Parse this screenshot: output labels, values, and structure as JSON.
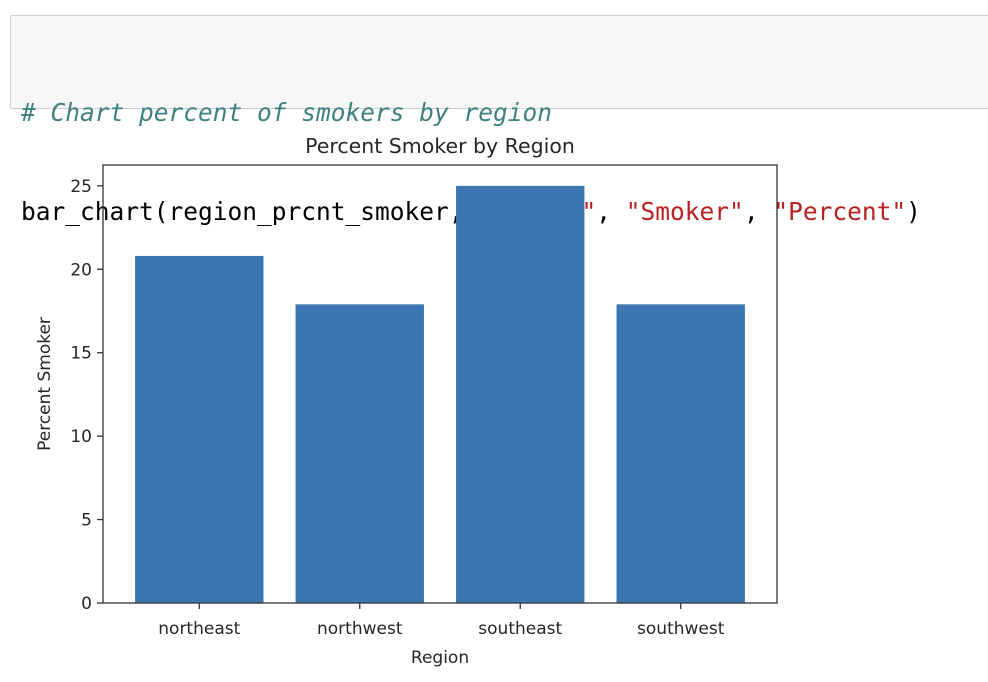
{
  "code_cell": {
    "comment": "# Chart percent of smokers by region",
    "code_tokens": [
      {
        "text": "bar_chart(region_prcnt_smoker, ",
        "kind": "plain"
      },
      {
        "text": "\"Region\"",
        "kind": "string"
      },
      {
        "text": ", ",
        "kind": "plain"
      },
      {
        "text": "\"Smoker\"",
        "kind": "string"
      },
      {
        "text": ", ",
        "kind": "plain"
      },
      {
        "text": "\"Percent\"",
        "kind": "string"
      },
      {
        "text": ")",
        "kind": "plain"
      }
    ]
  },
  "chart_data": {
    "type": "bar",
    "title": "Percent Smoker by Region",
    "xlabel": "Region",
    "ylabel": "Percent Smoker",
    "categories": [
      "northeast",
      "northwest",
      "southeast",
      "southwest"
    ],
    "values": [
      20.8,
      17.9,
      25.0,
      17.9
    ],
    "ylim": [
      0,
      26.25
    ],
    "yticks": [
      0,
      5,
      10,
      15,
      20,
      25
    ],
    "bar_color": "#3b76b2",
    "grid": false,
    "legend": "none"
  }
}
